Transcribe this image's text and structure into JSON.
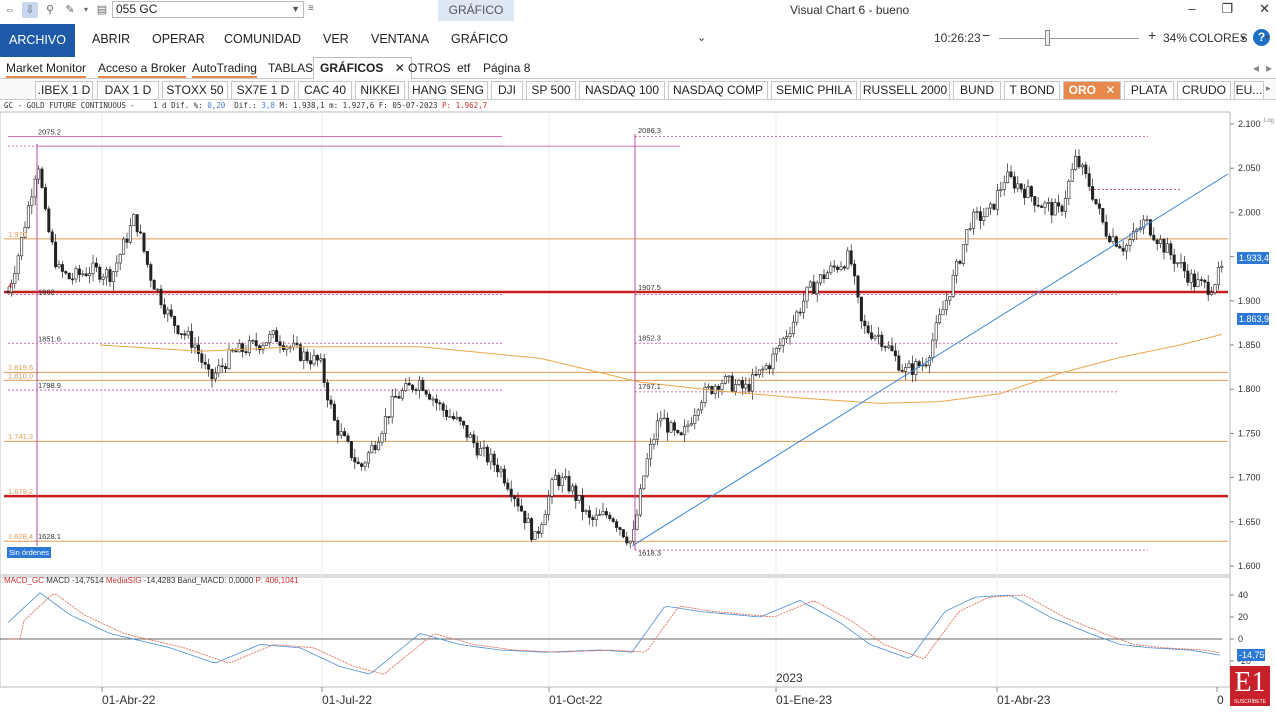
{
  "titlebar": {
    "combo_value": "055 GC",
    "context_tab": "GRÁFICO",
    "app_title": "Visual Chart 6 - bueno"
  },
  "ribbon": {
    "items": [
      "ARCHIVO",
      "ABRIR",
      "OPERAR",
      "COMUNIDAD",
      "VER",
      "VENTANA",
      "GRÁFICO"
    ],
    "clock": "10:26:23",
    "zoom": "34%",
    "colores": "COLORES",
    "accent": "#1e5aa8"
  },
  "section_tabs": [
    "Market Monitor",
    "Acceso a Broker",
    "AutoTrading",
    "TABLAS",
    "GRÁFICOS",
    "OTROS",
    "etf",
    "Página 8"
  ],
  "instrument_tabs": [
    ".IBEX 1 D",
    "DAX 1 D",
    "STOXX 50",
    "SX7E 1 D",
    "CAC 40",
    "NIKKEI",
    "HANG SENG",
    "DJI",
    "SP 500",
    "NASDAQ 100",
    "NASDAQ COMP",
    "SEMIC PHILA",
    "RUSSELL 2000",
    "BUND",
    "T BOND",
    "ORO",
    "PLATA",
    "CRUDO",
    "EU..."
  ],
  "instrument_active_color": "#e8884a",
  "infobar": {
    "symbol": "GC - GOLD FUTURE CONTINUOUS -",
    "period": "1 d",
    "dif_pct_label": "Dif. %:",
    "dif_pct": "0,20",
    "dif_label": "Dif.:",
    "dif": "3,8",
    "high_label": "M:",
    "high": "1.938,1",
    "low_label": "m:",
    "low": "1.927,6",
    "date_label": "F:",
    "date": "05-07-2023",
    "price_label": "P:",
    "price": "1.962,7"
  },
  "orders_badge": "Sin órdenes",
  "price_axis": {
    "ticks": [
      "2.100",
      "2.050",
      "2.000",
      "1.950",
      "1.900",
      "1.850",
      "1.800",
      "1.750",
      "1.700",
      "1.650",
      "1.600"
    ],
    "last_price": "1.933,4",
    "ma_price": "1.863,9",
    "log_label": "Log"
  },
  "chart_labels": {
    "left_levels": [
      "2075.2",
      "1.970",
      "4",
      "1902",
      "1851.6",
      "1.819,6",
      "1.810,0",
      "1798.9",
      "1.741,3",
      "1.679,2",
      "1.628,4",
      "1628.1"
    ],
    "mid_levels": [
      "2086.3",
      "1907.5",
      "1852.3",
      "1797.1",
      "1618.3"
    ]
  },
  "macd": {
    "name": "MACD_GC",
    "macd_label": "MACD",
    "macd_value": "-14,7514",
    "signal_label": "MediaSIG",
    "signal_value": "-14,4283",
    "band_label": "Band_MACD:",
    "band_value": "0,0000",
    "p_label": "P:",
    "p_value": "406,1041",
    "ticks": [
      "40",
      "20",
      "0",
      "-20"
    ],
    "last_value": "-14,75"
  },
  "time_axis": {
    "labels": [
      "01-Abr-22",
      "01-Jul-22",
      "01-Oct-22",
      "01-Ene-23",
      "01-Abr-23",
      "0"
    ],
    "year_label": "2023"
  },
  "logo": {
    "text": "E1",
    "sub": "SUSCRÍBETE"
  },
  "colors": {
    "support_red": "#c81e1e",
    "level_orange": "#e39a56",
    "ma_line": "#e8a84a",
    "trend_blue": "#3a86d6",
    "magenta": "#c04aa0",
    "macd_blue": "#4a8fd6",
    "macd_red": "#e0604a"
  }
}
